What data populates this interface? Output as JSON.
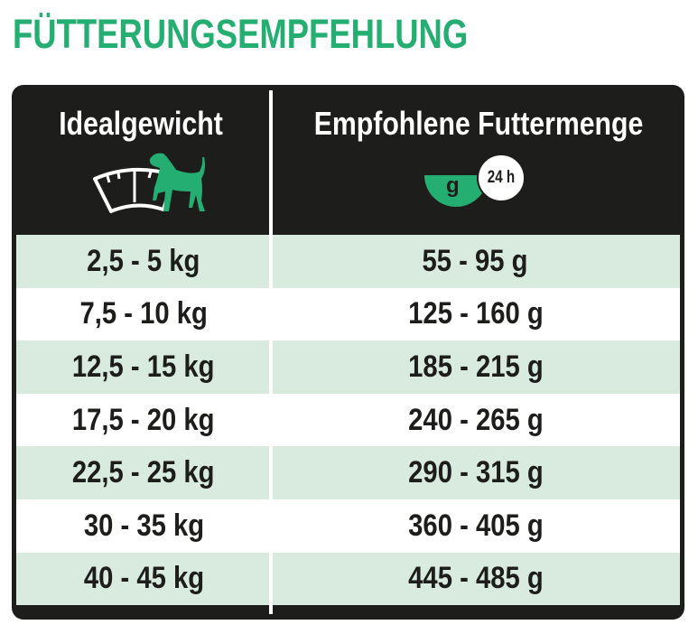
{
  "title": "FÜTTERUNGSEMPFEHLUNG",
  "colors": {
    "accent": "#25ae72",
    "dark": "#1d1d1b",
    "row_alt": "#d9ebdf"
  },
  "headers": [
    {
      "label": "Idealgewicht",
      "icon": "scale-with-dog-icon"
    },
    {
      "label": "Empfohlene Futtermenge",
      "icon": "bowl-24h-icon",
      "bowl_text": "g",
      "clock_text": "24 h"
    }
  ],
  "rows": [
    {
      "weight": "2,5 - 5 kg",
      "amount": "55 - 95 g"
    },
    {
      "weight": "7,5 - 10 kg",
      "amount": "125 - 160 g"
    },
    {
      "weight": "12,5 - 15 kg",
      "amount": "185 - 215 g"
    },
    {
      "weight": "17,5 - 20 kg",
      "amount": "240 - 265 g"
    },
    {
      "weight": "22,5 - 25 kg",
      "amount": "290 - 315 g"
    },
    {
      "weight": "30 - 35 kg",
      "amount": "360 - 405 g"
    },
    {
      "weight": "40 - 45 kg",
      "amount": "445 - 485 g"
    }
  ]
}
